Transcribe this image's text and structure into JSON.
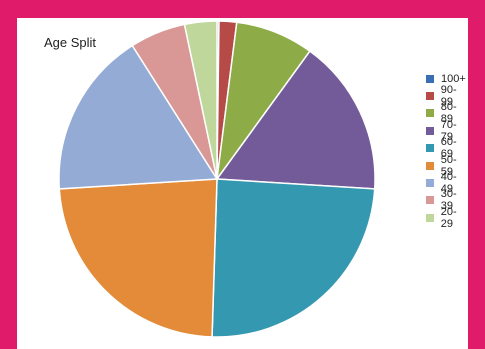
{
  "chart_data": {
    "type": "pie",
    "title": "Age Split",
    "legend_position": "right",
    "categories": [
      "100+",
      "90-99",
      "80-89",
      "70-79",
      "60-69",
      "50-59",
      "40-49",
      "30-39",
      "20-29"
    ],
    "values": [
      0.2,
      1.8,
      8.0,
      16.0,
      24.5,
      23.5,
      17.0,
      5.7,
      3.3
    ],
    "colors": [
      "#3b6fb3",
      "#b54a47",
      "#8dab47",
      "#725b98",
      "#3598b1",
      "#e38b38",
      "#93abd5",
      "#d99895",
      "#bfd79a"
    ]
  }
}
